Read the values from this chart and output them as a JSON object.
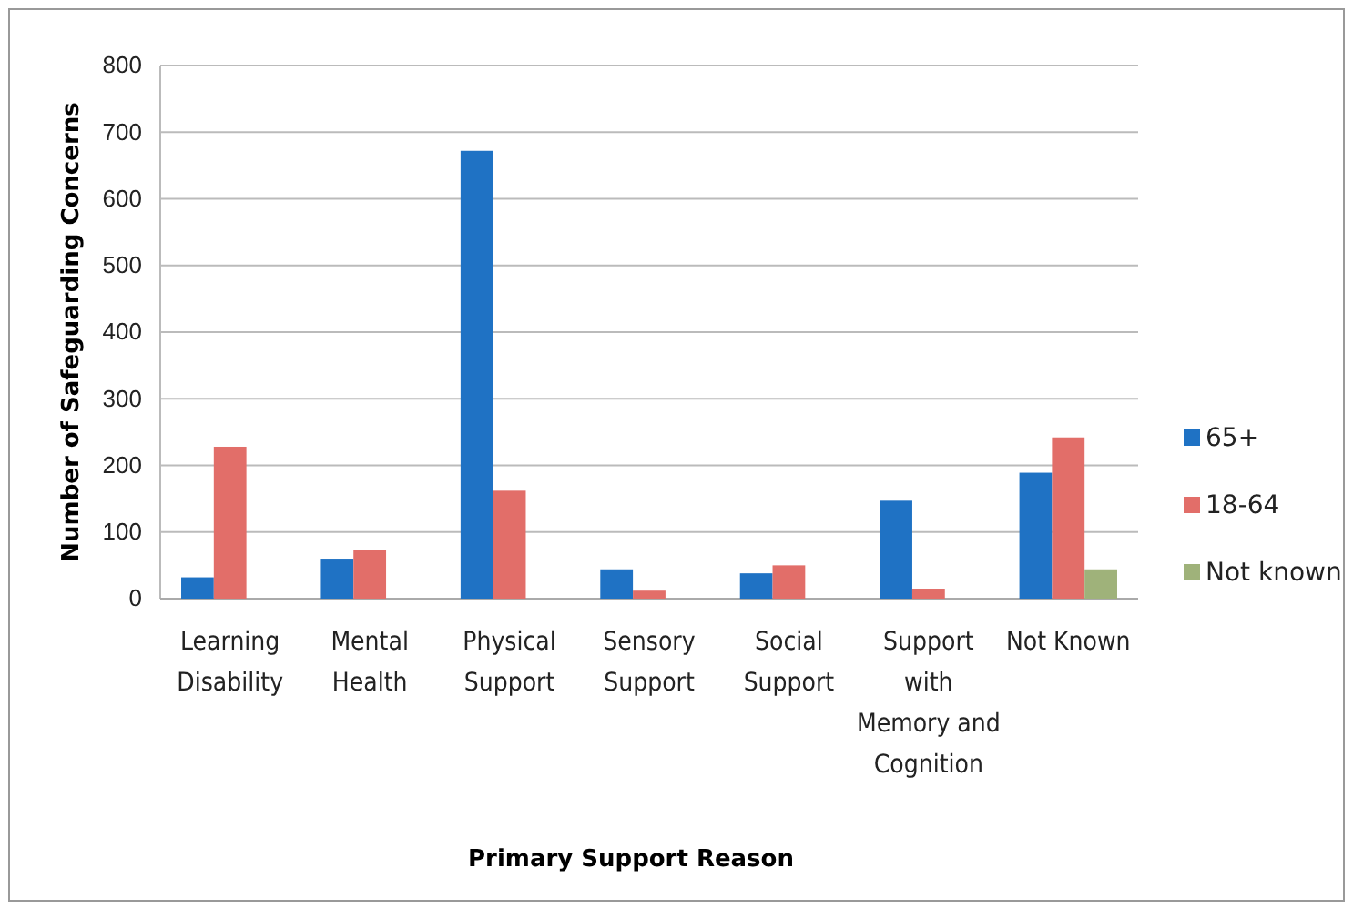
{
  "chart_data": {
    "type": "bar",
    "xlabel": "Primary Support Reason",
    "ylabel": "Number of Safeguarding Concerns",
    "categories": [
      "Learning Disability",
      "Mental Health",
      "Physical Support",
      "Sensory Support",
      "Social Support",
      "Support with Memory and Cognition",
      "Not Known"
    ],
    "series": [
      {
        "name": "65+",
        "color": "#1f72c4",
        "values": [
          32,
          60,
          672,
          44,
          38,
          147,
          189
        ]
      },
      {
        "name": "18-64",
        "color": "#e26e69",
        "values": [
          228,
          73,
          162,
          12,
          50,
          15,
          242
        ]
      },
      {
        "name": "Not known",
        "color": "#9fb27a",
        "values": [
          null,
          null,
          null,
          null,
          null,
          null,
          44
        ]
      }
    ],
    "ylim": [
      0,
      800
    ],
    "yticks": [
      0,
      100,
      200,
      300,
      400,
      500,
      600,
      700,
      800
    ],
    "grid": "y",
    "legend": "right"
  }
}
